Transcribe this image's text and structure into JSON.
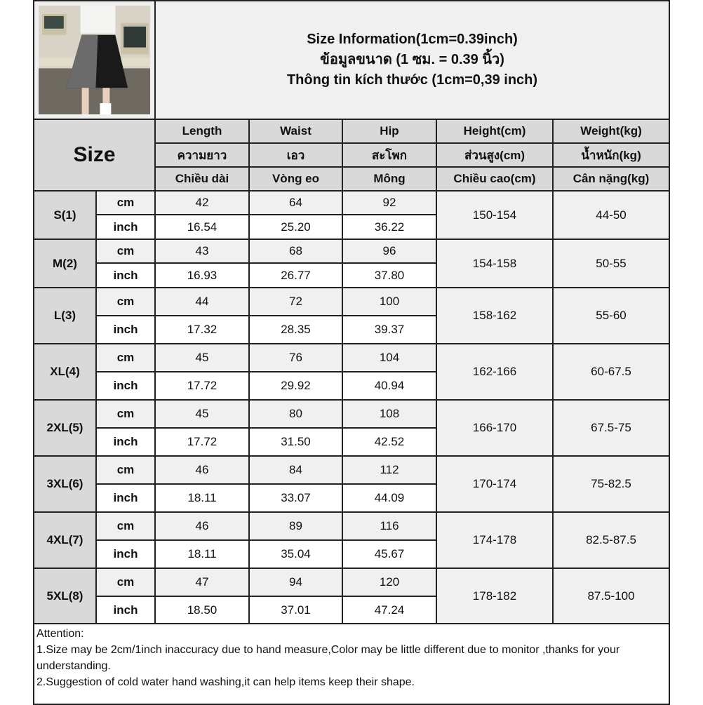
{
  "title_lines": [
    "Size Information(1cm=0.39inch)",
    "ข้อมูลขนาด (1 ซม. = 0.39 นิ้ว)",
    "Thông tin kích thước (1cm=0,39 inch)"
  ],
  "size_header": "Size",
  "columns": [
    {
      "en": "Length",
      "th": "ความยาว",
      "vi": "Chiều dài"
    },
    {
      "en": "Waist",
      "th": "เอว",
      "vi": "Vòng eo"
    },
    {
      "en": "Hip",
      "th": "สะโพก",
      "vi": "Mông"
    },
    {
      "en": "Height(cm)",
      "th": "ส่วนสูง(cm)",
      "vi": "Chiều cao(cm)"
    },
    {
      "en": "Weight(kg)",
      "th": "น้ำหนัก(kg)",
      "vi": "Cân nặng(kg)"
    }
  ],
  "units": {
    "cm": "cm",
    "inch": "inch"
  },
  "rows": [
    {
      "size": "S(1)",
      "cm": [
        "42",
        "64",
        "92"
      ],
      "inch": [
        "16.54",
        "25.20",
        "36.22"
      ],
      "height": "150-154",
      "weight": "44-50"
    },
    {
      "size": "M(2)",
      "cm": [
        "43",
        "68",
        "96"
      ],
      "inch": [
        "16.93",
        "26.77",
        "37.80"
      ],
      "height": "154-158",
      "weight": "50-55"
    },
    {
      "size": "L(3)",
      "cm": [
        "44",
        "72",
        "100"
      ],
      "inch": [
        "17.32",
        "28.35",
        "39.37"
      ],
      "height": "158-162",
      "weight": "55-60"
    },
    {
      "size": "XL(4)",
      "cm": [
        "45",
        "76",
        "104"
      ],
      "inch": [
        "17.72",
        "29.92",
        "40.94"
      ],
      "height": "162-166",
      "weight": "60-67.5"
    },
    {
      "size": "2XL(5)",
      "cm": [
        "45",
        "80",
        "108"
      ],
      "inch": [
        "17.72",
        "31.50",
        "42.52"
      ],
      "height": "166-170",
      "weight": "67.5-75"
    },
    {
      "size": "3XL(6)",
      "cm": [
        "46",
        "84",
        "112"
      ],
      "inch": [
        "18.11",
        "33.07",
        "44.09"
      ],
      "height": "170-174",
      "weight": "75-82.5"
    },
    {
      "size": "4XL(7)",
      "cm": [
        "46",
        "89",
        "116"
      ],
      "inch": [
        "18.11",
        "35.04",
        "45.67"
      ],
      "height": "174-178",
      "weight": "82.5-87.5"
    },
    {
      "size": "5XL(8)",
      "cm": [
        "47",
        "94",
        "120"
      ],
      "inch": [
        "18.50",
        "37.01",
        "47.24"
      ],
      "height": "178-182",
      "weight": "87.5-100"
    }
  ],
  "attention": {
    "heading": "Attention:",
    "lines": [
      "1.Size may be 2cm/1inch inaccuracy due to hand measure,Color may be little different due to monitor ,thanks for your understanding.",
      "2.Suggestion of cold water hand washing,it can help items keep their shape."
    ]
  }
}
